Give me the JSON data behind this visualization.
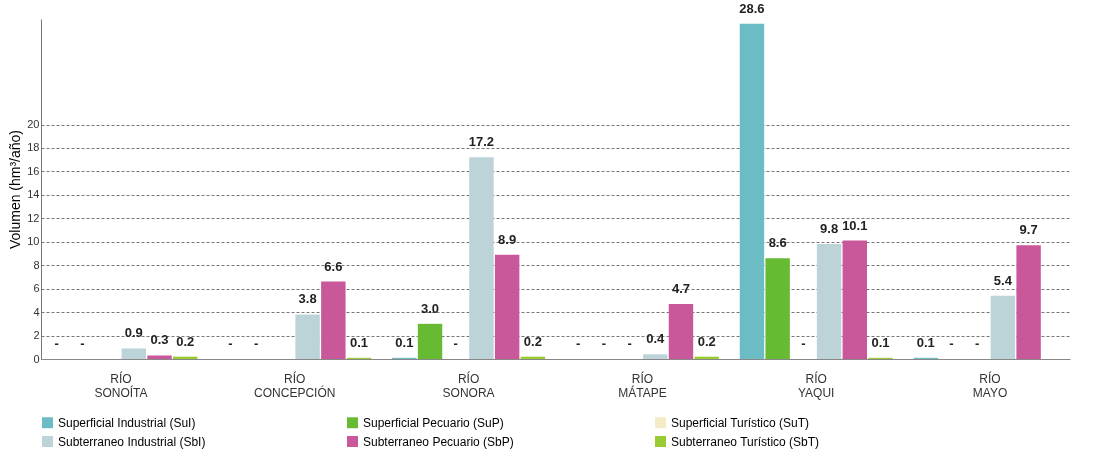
{
  "chart_data": {
    "type": "bar",
    "ylabel": "Volumen (hm³/año)",
    "categories": [
      "RÍO SONOÍTA",
      "RÍO CONCEPCIÓN",
      "RÍO SONORA",
      "RÍO MÁTAPE",
      "RÍO YAQUI",
      "RÍO MAYO"
    ],
    "series": [
      {
        "name": "Superficial Industrial (SuI)",
        "color": "#6cbcc6",
        "values": [
          null,
          null,
          0.1,
          null,
          28.6,
          0.1
        ],
        "value_labels": [
          "-",
          "-",
          "0.1",
          "-",
          "28.6",
          "0.1"
        ]
      },
      {
        "name": "Superficial Pecuario (SuP)",
        "color": "#66bb33",
        "values": [
          null,
          null,
          3.0,
          null,
          8.6,
          null
        ],
        "value_labels": [
          "-",
          "-",
          "3.0",
          "-",
          "8.6",
          "-"
        ]
      },
      {
        "name": "Superficial Turístico (SuT)",
        "color": "#f3ecc4",
        "values": [
          null,
          null,
          null,
          null,
          null,
          null
        ],
        "value_labels": [
          null,
          null,
          "-",
          "-",
          "-",
          "-"
        ]
      },
      {
        "name": "Subterraneo Industrial (SbI)",
        "color": "#bcd3d8",
        "values": [
          0.9,
          3.8,
          17.2,
          0.4,
          9.8,
          5.4
        ],
        "value_labels": [
          "0.9",
          "3.8",
          "17.2",
          "0.4",
          "9.8",
          "5.4"
        ]
      },
      {
        "name": "Subterraneo Pecuario (SbP)",
        "color": "#c8589a",
        "values": [
          0.3,
          6.6,
          8.9,
          4.7,
          10.1,
          9.7
        ],
        "value_labels": [
          "0.3",
          "6.6",
          "8.9",
          "4.7",
          "10.1",
          "9.7"
        ]
      },
      {
        "name": "Subterraneo Turístico (SbT)",
        "color": "#99cc33",
        "values": [
          0.2,
          0.1,
          0.2,
          0.2,
          0.1,
          null
        ],
        "value_labels": [
          "0.2",
          "0.1",
          "0.2",
          "0.2",
          "0.1",
          null
        ]
      }
    ],
    "ylim": [
      0,
      29
    ],
    "yticks": [
      0,
      2,
      4,
      6,
      8,
      10,
      12,
      14,
      16,
      18,
      20
    ],
    "grid": "y",
    "legend": "bottom"
  }
}
